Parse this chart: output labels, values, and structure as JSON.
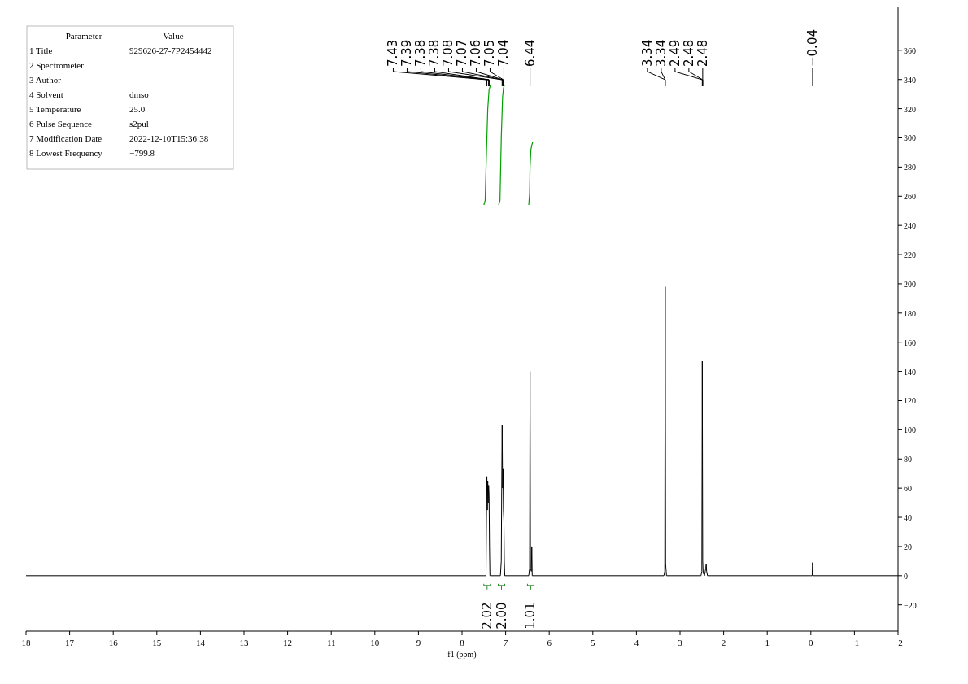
{
  "chart_data": {
    "type": "line",
    "xlabel": "f1 (ppm)",
    "xlim": [
      18,
      -2
    ],
    "xticks": [
      18,
      17,
      16,
      15,
      14,
      13,
      12,
      11,
      10,
      9,
      8,
      7,
      6,
      5,
      4,
      3,
      2,
      1,
      0,
      {
        "value": -1,
        "label": "−1"
      },
      {
        "value": -2,
        "label": "−2"
      }
    ],
    "ylim": [
      -38,
      390
    ],
    "yticks": [
      {
        "value": -20,
        "label": "−20"
      },
      0,
      20,
      40,
      60,
      80,
      100,
      120,
      140,
      160,
      180,
      200,
      220,
      240,
      260,
      280,
      300,
      320,
      340,
      360
    ],
    "grid": false,
    "series": [
      {
        "color": "#000000",
        "x": [
          18,
          7.5,
          7.45,
          7.44,
          7.43,
          7.42,
          7.41,
          7.4,
          7.39,
          7.38,
          7.37,
          7.36,
          7.12,
          7.1,
          7.09,
          7.08,
          7.07,
          7.06,
          7.05,
          7.04,
          7.03,
          7.02,
          6.47,
          6.45,
          6.44,
          6.43,
          6.41,
          6.4,
          6.39,
          3.37,
          3.35,
          3.34,
          3.33,
          3.31,
          2.52,
          2.5,
          2.49,
          2.48,
          2.47,
          2.44,
          2.41,
          2.4,
          2.39,
          2.37,
          0,
          -0.03,
          -0.04,
          -0.05,
          -2
        ],
        "values": [
          0,
          0,
          0,
          40,
          68,
          45,
          65,
          50,
          62,
          55,
          20,
          0,
          0,
          10,
          60,
          103,
          60,
          73,
          45,
          38,
          10,
          0,
          0,
          5,
          140,
          5,
          3,
          20,
          0,
          0,
          3,
          198,
          8,
          0,
          0,
          3,
          147,
          10,
          2,
          0,
          5,
          8,
          3,
          0,
          0,
          0,
          9,
          0,
          0
        ]
      },
      {
        "color": "#00a000",
        "x": [
          7.5,
          7.47,
          7.44,
          7.41,
          7.38,
          7.35
        ],
        "values": [
          254,
          257,
          290,
          320,
          333,
          336
        ]
      },
      {
        "color": "#00a000",
        "x": [
          7.16,
          7.13,
          7.1,
          7.07,
          7.05,
          7.03
        ],
        "values": [
          254,
          257,
          300,
          328,
          334,
          336
        ]
      },
      {
        "color": "#00a000",
        "x": [
          6.47,
          6.45,
          6.44,
          6.42,
          6.4,
          6.38
        ],
        "values": [
          254,
          262,
          280,
          292,
          295,
          297
        ]
      }
    ],
    "annotations": [
      {
        "text": "7.43",
        "x": 7.43
      },
      {
        "text": "7.39",
        "x": 7.39
      },
      {
        "text": "7.38",
        "x": 7.38
      },
      {
        "text": "7.38",
        "x": 7.38
      },
      {
        "text": "7.08",
        "x": 7.08
      },
      {
        "text": "7.07",
        "x": 7.07
      },
      {
        "text": "7.06",
        "x": 7.06
      },
      {
        "text": "7.05",
        "x": 7.05
      },
      {
        "text": "7.04",
        "x": 7.04
      },
      {
        "text": "6.44",
        "x": 6.44
      },
      {
        "text": "3.34",
        "x": 3.34
      },
      {
        "text": "3.34",
        "x": 3.34
      },
      {
        "text": "2.49",
        "x": 2.49
      },
      {
        "text": "2.48",
        "x": 2.48
      },
      {
        "text": "2.48",
        "x": 2.48
      },
      {
        "text": "−0.04",
        "x": -0.04
      },
      "2.02",
      "2.00",
      "1.01",
      "Parameter\tValue",
      "1 Title\t929626-27-7P2454442",
      "2 Spectrometer",
      "3 Author",
      "4 Solvent\tdmso",
      "5 Temperature\t25.0",
      "6 Pulse Sequence\ts2pul",
      "7 Modification Date\t2022-12-10T15:36:38",
      "8 Lowest Frequency\t−799.8"
    ]
  }
}
